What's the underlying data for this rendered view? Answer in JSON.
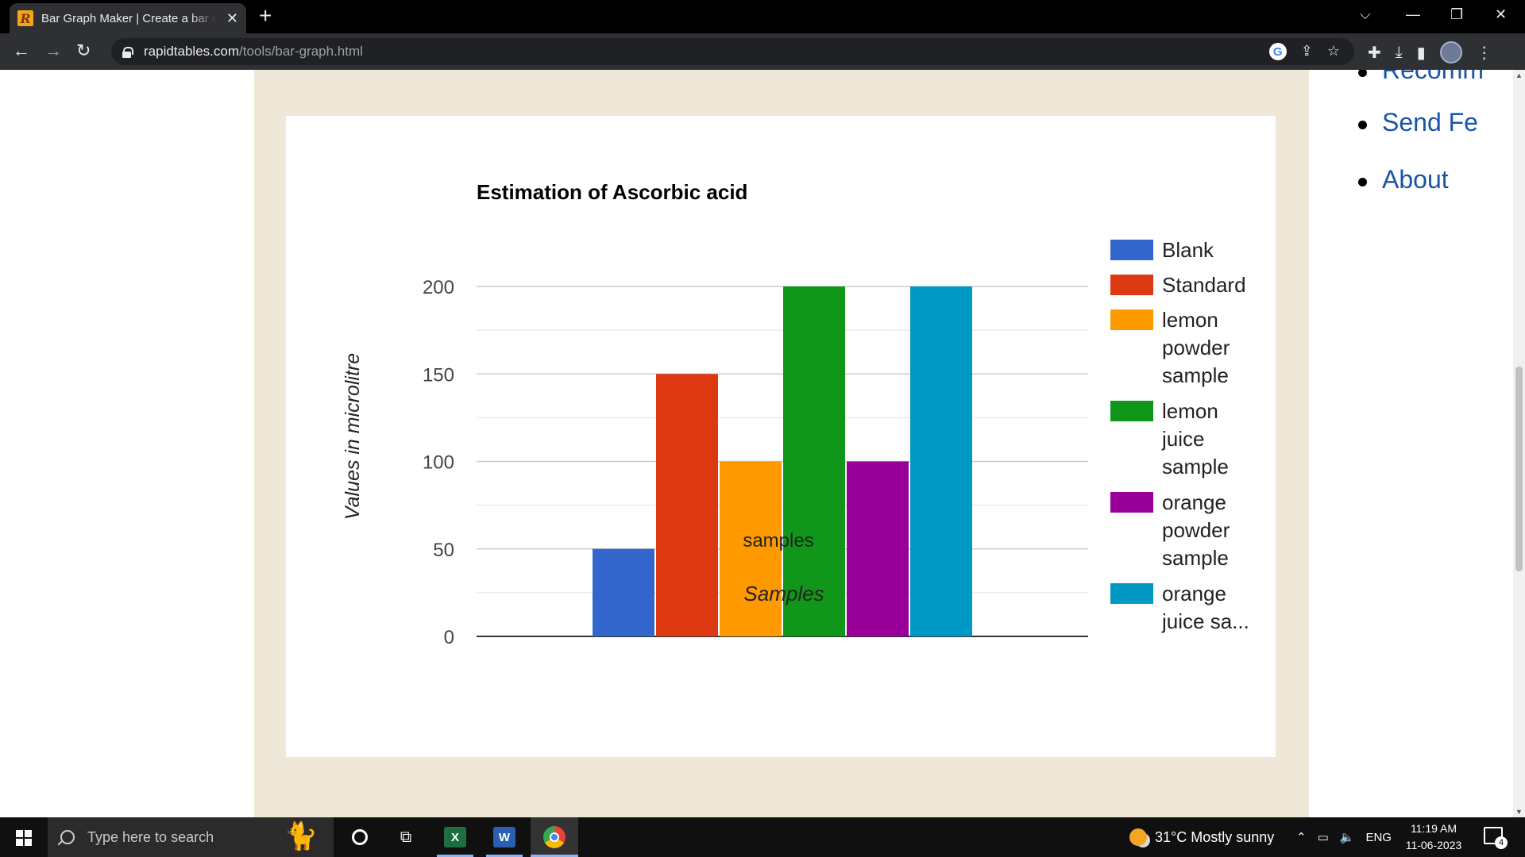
{
  "browser": {
    "tab_title": "Bar Graph Maker | Create a bar chart online",
    "url_host": "rapidtables.com",
    "url_path": "/tools/bar-graph.html"
  },
  "sidebar": {
    "items": [
      {
        "label": "Recomm"
      },
      {
        "label": "Send Fe"
      },
      {
        "label": "About"
      }
    ]
  },
  "chart_data": {
    "type": "bar",
    "title": "Estimation of Ascorbic acid",
    "xlabel": "Samples",
    "ylabel": "Values in microlitre",
    "categories": [
      "samples"
    ],
    "ylim": [
      0,
      200
    ],
    "yticks": [
      "0",
      "50",
      "100",
      "150",
      "200"
    ],
    "grid": true,
    "legend_position": "right",
    "series": [
      {
        "name": "Blank",
        "values": [
          50
        ],
        "color": "#3366cc",
        "legend_lines": [
          "Blank"
        ]
      },
      {
        "name": "Standard",
        "values": [
          150
        ],
        "color": "#dc3912",
        "legend_lines": [
          "Standard"
        ]
      },
      {
        "name": "lemon powder sample",
        "values": [
          100
        ],
        "color": "#ff9900",
        "legend_lines": [
          "lemon",
          "powder",
          "sample"
        ]
      },
      {
        "name": "lemon juice sample",
        "values": [
          200
        ],
        "color": "#109618",
        "legend_lines": [
          "lemon",
          "juice",
          "sample"
        ]
      },
      {
        "name": "orange powder sample",
        "values": [
          100
        ],
        "color": "#990099",
        "legend_lines": [
          "orange",
          "powder",
          "sample"
        ]
      },
      {
        "name": "orange juice sample",
        "values": [
          200
        ],
        "color": "#0099c6",
        "legend_lines": [
          "orange",
          "juice sa..."
        ]
      }
    ]
  },
  "taskbar": {
    "search_placeholder": "Type here to search",
    "excel_label": "X",
    "word_label": "W",
    "weather": "31°C  Mostly sunny",
    "language": "ENG",
    "time": "11:19 AM",
    "date": "11-06-2023",
    "notification_count": "4"
  }
}
